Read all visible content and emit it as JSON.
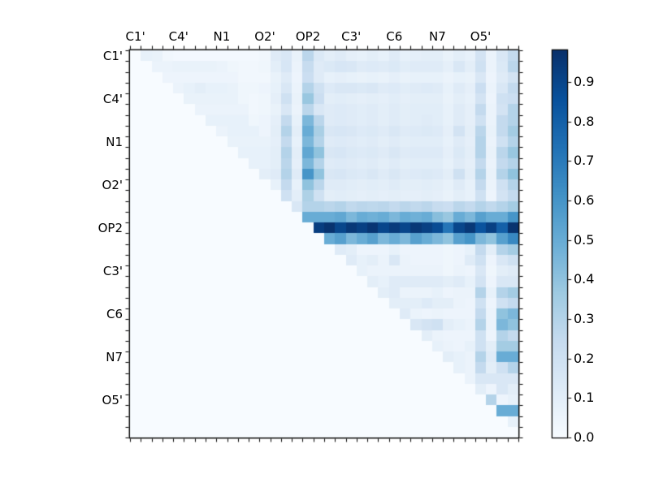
{
  "chart_data": {
    "type": "heatmap",
    "title": "",
    "x_tick_labels": [
      "C1'",
      "C4'",
      "N1",
      "O2'",
      "OP2",
      "C3'",
      "C6",
      "N7",
      "O5'"
    ],
    "y_tick_labels": [
      "C1'",
      "C4'",
      "N1",
      "O2'",
      "OP2",
      "C3'",
      "C6",
      "N7",
      "O5'"
    ],
    "matrix_size": 36,
    "label_group_size": 4,
    "vmin": 0.0,
    "vmax": 0.98,
    "colormap": "Blues",
    "colormap_stops": [
      [
        0.0,
        "#f7fbff"
      ],
      [
        0.125,
        "#deebf7"
      ],
      [
        0.25,
        "#c6dbef"
      ],
      [
        0.375,
        "#9ecae1"
      ],
      [
        0.5,
        "#6baed6"
      ],
      [
        0.625,
        "#4292c6"
      ],
      [
        0.75,
        "#2171b5"
      ],
      [
        0.875,
        "#08519c"
      ],
      [
        1.0,
        "#08306b"
      ]
    ],
    "colorbar": {
      "tick_labels": [
        "0.0",
        "0.1",
        "0.2",
        "0.3",
        "0.4",
        "0.5",
        "0.6",
        "0.7",
        "0.8",
        "0.9"
      ],
      "tick_values": [
        0.0,
        0.1,
        0.2,
        0.3,
        0.4,
        0.5,
        0.6,
        0.7,
        0.8,
        0.9
      ]
    },
    "matrix": [
      [
        0,
        0.08,
        0.07,
        0.03,
        0.02,
        0.02,
        0.02,
        0.02,
        0.02,
        0.02,
        0.02,
        0.02,
        0.03,
        0.12,
        0.15,
        0.07,
        0.28,
        0.14,
        0.1,
        0.12,
        0.09,
        0.08,
        0.1,
        0.08,
        0.12,
        0.08,
        0.09,
        0.1,
        0.1,
        0.07,
        0.1,
        0.08,
        0.18,
        0.06,
        0.15,
        0.25
      ],
      [
        0,
        0,
        0.06,
        0.06,
        0.07,
        0.07,
        0.07,
        0.07,
        0.06,
        0.04,
        0.03,
        0.03,
        0.04,
        0.1,
        0.16,
        0.06,
        0.24,
        0.12,
        0.14,
        0.16,
        0.15,
        0.12,
        0.13,
        0.12,
        0.14,
        0.11,
        0.12,
        0.12,
        0.12,
        0.09,
        0.15,
        0.1,
        0.2,
        0.06,
        0.14,
        0.28
      ],
      [
        0,
        0,
        0,
        0.05,
        0.05,
        0.05,
        0.05,
        0.05,
        0.05,
        0.05,
        0.03,
        0.03,
        0.03,
        0.07,
        0.12,
        0.05,
        0.22,
        0.12,
        0.08,
        0.09,
        0.08,
        0.07,
        0.08,
        0.07,
        0.09,
        0.07,
        0.08,
        0.08,
        0.08,
        0.06,
        0.08,
        0.07,
        0.15,
        0.05,
        0.12,
        0.18
      ],
      [
        0,
        0,
        0,
        0,
        0.06,
        0.08,
        0.1,
        0.08,
        0.08,
        0.07,
        0.04,
        0.04,
        0.05,
        0.08,
        0.15,
        0.06,
        0.3,
        0.2,
        0.13,
        0.15,
        0.15,
        0.14,
        0.15,
        0.12,
        0.13,
        0.11,
        0.12,
        0.13,
        0.12,
        0.08,
        0.12,
        0.09,
        0.22,
        0.06,
        0.15,
        0.25
      ],
      [
        0,
        0,
        0,
        0,
        0,
        0.07,
        0.07,
        0.07,
        0.07,
        0.07,
        0.04,
        0.03,
        0.04,
        0.09,
        0.2,
        0.07,
        0.38,
        0.22,
        0.1,
        0.11,
        0.1,
        0.09,
        0.1,
        0.09,
        0.11,
        0.09,
        0.1,
        0.1,
        0.1,
        0.07,
        0.1,
        0.08,
        0.18,
        0.05,
        0.2,
        0.22
      ],
      [
        0,
        0,
        0,
        0,
        0,
        0,
        0.06,
        0.06,
        0.06,
        0.06,
        0.06,
        0.03,
        0.04,
        0.07,
        0.15,
        0.06,
        0.28,
        0.15,
        0.12,
        0.13,
        0.12,
        0.11,
        0.12,
        0.1,
        0.12,
        0.1,
        0.11,
        0.11,
        0.11,
        0.08,
        0.12,
        0.09,
        0.25,
        0.06,
        0.18,
        0.3
      ],
      [
        0,
        0,
        0,
        0,
        0,
        0,
        0,
        0.08,
        0.08,
        0.08,
        0.08,
        0.04,
        0.05,
        0.09,
        0.25,
        0.08,
        0.45,
        0.28,
        0.12,
        0.13,
        0.12,
        0.11,
        0.12,
        0.1,
        0.12,
        0.1,
        0.11,
        0.12,
        0.11,
        0.08,
        0.12,
        0.09,
        0.2,
        0.06,
        0.25,
        0.3
      ],
      [
        0,
        0,
        0,
        0,
        0,
        0,
        0,
        0,
        0.06,
        0.08,
        0.08,
        0.08,
        0.05,
        0.1,
        0.3,
        0.1,
        0.5,
        0.33,
        0.15,
        0.16,
        0.15,
        0.13,
        0.14,
        0.12,
        0.15,
        0.12,
        0.13,
        0.14,
        0.13,
        0.09,
        0.18,
        0.1,
        0.28,
        0.07,
        0.25,
        0.35
      ],
      [
        0,
        0,
        0,
        0,
        0,
        0,
        0,
        0,
        0,
        0.07,
        0.07,
        0.07,
        0.07,
        0.09,
        0.25,
        0.08,
        0.45,
        0.3,
        0.12,
        0.13,
        0.12,
        0.11,
        0.12,
        0.1,
        0.12,
        0.1,
        0.11,
        0.11,
        0.11,
        0.08,
        0.12,
        0.09,
        0.3,
        0.06,
        0.2,
        0.3
      ],
      [
        0,
        0,
        0,
        0,
        0,
        0,
        0,
        0,
        0,
        0,
        0.08,
        0.08,
        0.08,
        0.1,
        0.3,
        0.1,
        0.52,
        0.4,
        0.15,
        0.16,
        0.14,
        0.13,
        0.14,
        0.12,
        0.15,
        0.12,
        0.13,
        0.13,
        0.13,
        0.09,
        0.14,
        0.1,
        0.3,
        0.07,
        0.28,
        0.38
      ],
      [
        0,
        0,
        0,
        0,
        0,
        0,
        0,
        0,
        0,
        0,
        0,
        0.08,
        0.08,
        0.1,
        0.28,
        0.09,
        0.45,
        0.3,
        0.12,
        0.13,
        0.12,
        0.11,
        0.12,
        0.1,
        0.12,
        0.1,
        0.11,
        0.11,
        0.11,
        0.08,
        0.12,
        0.09,
        0.25,
        0.06,
        0.25,
        0.3
      ],
      [
        0,
        0,
        0,
        0,
        0,
        0,
        0,
        0,
        0,
        0,
        0,
        0,
        0.1,
        0.12,
        0.3,
        0.12,
        0.6,
        0.4,
        0.15,
        0.16,
        0.14,
        0.13,
        0.15,
        0.12,
        0.15,
        0.12,
        0.13,
        0.14,
        0.13,
        0.1,
        0.2,
        0.1,
        0.3,
        0.07,
        0.3,
        0.4
      ],
      [
        0,
        0,
        0,
        0,
        0,
        0,
        0,
        0,
        0,
        0,
        0,
        0,
        0,
        0.08,
        0.25,
        0.08,
        0.4,
        0.28,
        0.12,
        0.12,
        0.11,
        0.1,
        0.11,
        0.1,
        0.12,
        0.1,
        0.1,
        0.11,
        0.1,
        0.08,
        0.12,
        0.08,
        0.25,
        0.06,
        0.2,
        0.3
      ],
      [
        0,
        0,
        0,
        0,
        0,
        0,
        0,
        0,
        0,
        0,
        0,
        0,
        0,
        0,
        0.2,
        0.1,
        0.32,
        0.2,
        0.1,
        0.11,
        0.1,
        0.09,
        0.1,
        0.09,
        0.1,
        0.09,
        0.09,
        0.1,
        0.09,
        0.07,
        0.1,
        0.08,
        0.2,
        0.05,
        0.18,
        0.25
      ],
      [
        0,
        0,
        0,
        0,
        0,
        0,
        0,
        0,
        0,
        0,
        0,
        0,
        0,
        0,
        0,
        0.15,
        0.3,
        0.3,
        0.28,
        0.3,
        0.26,
        0.28,
        0.27,
        0.28,
        0.25,
        0.28,
        0.26,
        0.28,
        0.24,
        0.22,
        0.28,
        0.25,
        0.3,
        0.26,
        0.3,
        0.35
      ],
      [
        0,
        0,
        0,
        0,
        0,
        0,
        0,
        0,
        0,
        0,
        0,
        0,
        0,
        0,
        0,
        0,
        0.5,
        0.5,
        0.5,
        0.52,
        0.45,
        0.5,
        0.48,
        0.5,
        0.45,
        0.5,
        0.48,
        0.5,
        0.42,
        0.38,
        0.5,
        0.45,
        0.55,
        0.5,
        0.5,
        0.6
      ],
      [
        0,
        0,
        0,
        0,
        0,
        0,
        0,
        0,
        0,
        0,
        0,
        0,
        0,
        0,
        0,
        0,
        0,
        0.93,
        0.97,
        0.9,
        0.95,
        0.92,
        0.96,
        0.9,
        0.94,
        0.9,
        0.95,
        0.92,
        0.88,
        0.72,
        0.9,
        0.95,
        0.85,
        0.92,
        0.8,
        0.97
      ],
      [
        0,
        0,
        0,
        0,
        0,
        0,
        0,
        0,
        0,
        0,
        0,
        0,
        0,
        0,
        0,
        0,
        0,
        0,
        0.5,
        0.55,
        0.45,
        0.5,
        0.55,
        0.45,
        0.5,
        0.45,
        0.55,
        0.5,
        0.45,
        0.4,
        0.55,
        0.6,
        0.45,
        0.4,
        0.55,
        0.65
      ],
      [
        0,
        0,
        0,
        0,
        0,
        0,
        0,
        0,
        0,
        0,
        0,
        0,
        0,
        0,
        0,
        0,
        0,
        0,
        0,
        0.12,
        0.1,
        0.05,
        0.05,
        0.05,
        0.08,
        0.05,
        0.05,
        0.05,
        0.05,
        0.04,
        0.05,
        0.08,
        0.25,
        0.1,
        0.3,
        0.35
      ],
      [
        0,
        0,
        0,
        0,
        0,
        0,
        0,
        0,
        0,
        0,
        0,
        0,
        0,
        0,
        0,
        0,
        0,
        0,
        0,
        0,
        0.12,
        0.08,
        0.1,
        0.06,
        0.15,
        0.06,
        0.05,
        0.05,
        0.05,
        0.04,
        0.05,
        0.12,
        0.2,
        0.05,
        0.15,
        0.2
      ],
      [
        0,
        0,
        0,
        0,
        0,
        0,
        0,
        0,
        0,
        0,
        0,
        0,
        0,
        0,
        0,
        0,
        0,
        0,
        0,
        0,
        0,
        0.08,
        0.06,
        0.06,
        0.06,
        0.06,
        0.06,
        0.06,
        0.06,
        0.04,
        0.06,
        0.05,
        0.15,
        0.04,
        0.1,
        0.12
      ],
      [
        0,
        0,
        0,
        0,
        0,
        0,
        0,
        0,
        0,
        0,
        0,
        0,
        0,
        0,
        0,
        0,
        0,
        0,
        0,
        0,
        0,
        0,
        0.1,
        0.08,
        0.12,
        0.12,
        0.12,
        0.12,
        0.12,
        0.1,
        0.12,
        0.08,
        0.18,
        0.05,
        0.15,
        0.15
      ],
      [
        0,
        0,
        0,
        0,
        0,
        0,
        0,
        0,
        0,
        0,
        0,
        0,
        0,
        0,
        0,
        0,
        0,
        0,
        0,
        0,
        0,
        0,
        0,
        0.1,
        0.12,
        0.06,
        0.06,
        0.06,
        0.08,
        0.05,
        0.06,
        0.06,
        0.3,
        0.08,
        0.3,
        0.35
      ],
      [
        0,
        0,
        0,
        0,
        0,
        0,
        0,
        0,
        0,
        0,
        0,
        0,
        0,
        0,
        0,
        0,
        0,
        0,
        0,
        0,
        0,
        0,
        0,
        0,
        0.1,
        0.1,
        0.1,
        0.13,
        0.1,
        0.1,
        0.06,
        0.05,
        0.2,
        0.05,
        0.2,
        0.25
      ],
      [
        0,
        0,
        0,
        0,
        0,
        0,
        0,
        0,
        0,
        0,
        0,
        0,
        0,
        0,
        0,
        0,
        0,
        0,
        0,
        0,
        0,
        0,
        0,
        0,
        0,
        0.12,
        0.06,
        0.05,
        0.06,
        0.05,
        0.05,
        0.05,
        0.25,
        0.06,
        0.4,
        0.45
      ],
      [
        0,
        0,
        0,
        0,
        0,
        0,
        0,
        0,
        0,
        0,
        0,
        0,
        0,
        0,
        0,
        0,
        0,
        0,
        0,
        0,
        0,
        0,
        0,
        0,
        0,
        0,
        0.15,
        0.18,
        0.2,
        0.1,
        0.08,
        0.06,
        0.3,
        0.06,
        0.45,
        0.4
      ],
      [
        0,
        0,
        0,
        0,
        0,
        0,
        0,
        0,
        0,
        0,
        0,
        0,
        0,
        0,
        0,
        0,
        0,
        0,
        0,
        0,
        0,
        0,
        0,
        0,
        0,
        0,
        0,
        0.1,
        0.06,
        0.05,
        0.05,
        0.05,
        0.2,
        0.05,
        0.3,
        0.25
      ],
      [
        0,
        0,
        0,
        0,
        0,
        0,
        0,
        0,
        0,
        0,
        0,
        0,
        0,
        0,
        0,
        0,
        0,
        0,
        0,
        0,
        0,
        0,
        0,
        0,
        0,
        0,
        0,
        0,
        0.08,
        0.06,
        0.05,
        0.08,
        0.2,
        0.1,
        0.35,
        0.35
      ],
      [
        0,
        0,
        0,
        0,
        0,
        0,
        0,
        0,
        0,
        0,
        0,
        0,
        0,
        0,
        0,
        0,
        0,
        0,
        0,
        0,
        0,
        0,
        0,
        0,
        0,
        0,
        0,
        0,
        0,
        0.1,
        0.08,
        0.06,
        0.3,
        0.12,
        0.5,
        0.5
      ],
      [
        0,
        0,
        0,
        0,
        0,
        0,
        0,
        0,
        0,
        0,
        0,
        0,
        0,
        0,
        0,
        0,
        0,
        0,
        0,
        0,
        0,
        0,
        0,
        0,
        0,
        0,
        0,
        0,
        0,
        0,
        0.08,
        0.06,
        0.25,
        0.1,
        0.2,
        0.3
      ],
      [
        0,
        0,
        0,
        0,
        0,
        0,
        0,
        0,
        0,
        0,
        0,
        0,
        0,
        0,
        0,
        0,
        0,
        0,
        0,
        0,
        0,
        0,
        0,
        0,
        0,
        0,
        0,
        0,
        0,
        0,
        0,
        0.06,
        0.15,
        0.15,
        0.15,
        0.15
      ],
      [
        0,
        0,
        0,
        0,
        0,
        0,
        0,
        0,
        0,
        0,
        0,
        0,
        0,
        0,
        0,
        0,
        0,
        0,
        0,
        0,
        0,
        0,
        0,
        0,
        0,
        0,
        0,
        0,
        0,
        0,
        0,
        0,
        0.1,
        0.05,
        0.15,
        0.1
      ],
      [
        0,
        0,
        0,
        0,
        0,
        0,
        0,
        0,
        0,
        0,
        0,
        0,
        0,
        0,
        0,
        0,
        0,
        0,
        0,
        0,
        0,
        0,
        0,
        0,
        0,
        0,
        0,
        0,
        0,
        0,
        0,
        0,
        0,
        0.3,
        0.05,
        0.08
      ],
      [
        0,
        0,
        0,
        0,
        0,
        0,
        0,
        0,
        0,
        0,
        0,
        0,
        0,
        0,
        0,
        0,
        0,
        0,
        0,
        0,
        0,
        0,
        0,
        0,
        0,
        0,
        0,
        0,
        0,
        0,
        0,
        0,
        0,
        0,
        0.5,
        0.5
      ],
      [
        0,
        0,
        0,
        0,
        0,
        0,
        0,
        0,
        0,
        0,
        0,
        0,
        0,
        0,
        0,
        0,
        0,
        0,
        0,
        0,
        0,
        0,
        0,
        0,
        0,
        0,
        0,
        0,
        0,
        0,
        0,
        0,
        0,
        0,
        0,
        0.08
      ],
      [
        0,
        0,
        0,
        0,
        0,
        0,
        0,
        0,
        0,
        0,
        0,
        0,
        0,
        0,
        0,
        0,
        0,
        0,
        0,
        0,
        0,
        0,
        0,
        0,
        0,
        0,
        0,
        0,
        0,
        0,
        0,
        0,
        0,
        0,
        0,
        0
      ]
    ]
  },
  "colors": {
    "background": "#ffffff",
    "spine": "#000000",
    "tick": "#000000",
    "label_text": "#000000"
  }
}
